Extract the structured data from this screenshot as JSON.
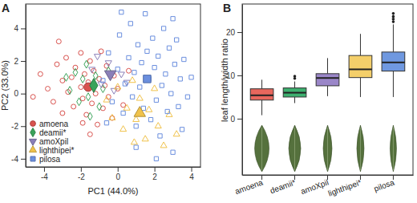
{
  "chart_data": [
    {
      "type": "scatter",
      "title": "A",
      "xlabel": "PC1 (44.0%)",
      "ylabel": "PC2 (33.0%)",
      "xlim": [
        -5,
        4.5
      ],
      "xticks": [
        -4,
        -2,
        0,
        2,
        4
      ],
      "ylim": [
        -4.5,
        5.5
      ],
      "yticks": [
        -4,
        -2,
        0,
        2,
        4
      ],
      "legend": "bottom-left",
      "series": [
        {
          "name": "amoena",
          "color": "#d9534f",
          "marker": "circle",
          "x": [
            -4.2,
            -3.8,
            -3.5,
            -3.3,
            -3.0,
            -3.0,
            -2.8,
            -2.7,
            -2.5,
            -2.4,
            -2.3,
            -1.9,
            -2.0,
            -2.0,
            -1.9,
            -1.8,
            -1.7,
            -1.6,
            -1.5,
            -1.4,
            -1.3,
            -1.2,
            -1.1,
            -1.0,
            -0.9,
            -0.8,
            -0.7,
            -0.6,
            -0.5,
            -0.3,
            -0.2,
            0.0,
            0.3,
            0.6,
            -4.6,
            -3.2,
            -1.5
          ],
          "y": [
            1.2,
            0.3,
            -0.5,
            1.8,
            0.8,
            -1.2,
            2.2,
            0.1,
            1.0,
            -0.8,
            1.6,
            -1.8,
            0.4,
            2.5,
            -0.3,
            1.2,
            -1.3,
            0.7,
            2.0,
            -0.6,
            1.4,
            0.0,
            -1.9,
            0.9,
            2.6,
            -0.9,
            0.5,
            1.7,
            -0.2,
            -1.5,
            1.1,
            0.3,
            -0.7,
            1.4,
            -0.2,
            3.2,
            -2.5
          ],
          "centroid_x": -1.6,
          "centroid_y": 0.4
        },
        {
          "name": "deamii*",
          "color": "#3aa35a",
          "marker": "diamond",
          "x": [
            -2.6,
            -2.3,
            -2.1,
            -1.9,
            -1.7,
            -1.6,
            -1.4,
            -1.2,
            -1.0,
            -0.8,
            -2.8,
            -0.5,
            -1.5
          ],
          "y": [
            0.2,
            1.3,
            -0.5,
            0.9,
            1.8,
            -0.2,
            0.5,
            1.1,
            -0.8,
            0.3,
            1.0,
            1.4,
            -1.4
          ],
          "centroid_x": -1.3,
          "centroid_y": 0.5
        },
        {
          "name": "amoXpil",
          "color": "#8a7fb8",
          "marker": "triangle-down",
          "x": [
            -1.4,
            -0.9,
            -0.5,
            -0.2,
            0.2,
            -1.1,
            0.5
          ],
          "y": [
            1.5,
            0.6,
            1.9,
            0.2,
            1.2,
            2.3,
            0.7
          ],
          "centroid_x": -0.4,
          "centroid_y": 1.2
        },
        {
          "name": "lighthipei*",
          "color": "#f0c24b",
          "marker": "triangle-up",
          "x": [
            -0.6,
            -0.3,
            0.0,
            0.3,
            0.5,
            0.8,
            1.0,
            1.2,
            1.5,
            1.7,
            2.0,
            2.2,
            2.5,
            2.8,
            3.2,
            0.9
          ],
          "y": [
            -0.4,
            -1.5,
            0.4,
            -2.2,
            -0.9,
            0.8,
            -1.6,
            -0.3,
            -2.8,
            -1.0,
            0.3,
            -2.0,
            -3.2,
            -1.3,
            -2.5,
            -3.0
          ],
          "centroid_x": 1.2,
          "centroid_y": -1.2
        },
        {
          "name": "pilosa",
          "color": "#6b8fde",
          "marker": "square",
          "x": [
            -0.8,
            -0.5,
            -0.3,
            0.0,
            0.1,
            0.3,
            0.4,
            0.6,
            0.7,
            0.8,
            0.9,
            1.0,
            1.1,
            1.2,
            1.3,
            1.4,
            1.5,
            1.6,
            1.7,
            1.8,
            1.9,
            2.0,
            2.1,
            2.2,
            2.3,
            2.4,
            2.5,
            2.6,
            2.7,
            2.8,
            2.9,
            3.0,
            3.1,
            3.2,
            3.3,
            3.4,
            3.5,
            3.6,
            3.8,
            4.0,
            0.2,
            1.0,
            2.1,
            -0.6,
            3.0
          ],
          "y": [
            0.8,
            2.5,
            -0.5,
            1.5,
            3.6,
            -1.2,
            0.6,
            2.2,
            4.3,
            -0.2,
            1.3,
            -2.0,
            3.0,
            0.4,
            1.9,
            -0.9,
            4.9,
            2.6,
            0.9,
            -1.6,
            3.4,
            1.6,
            -0.4,
            2.3,
            -2.6,
            0.5,
            4.0,
            1.2,
            -1.1,
            2.8,
            0.0,
            -3.6,
            1.8,
            3.3,
            -0.8,
            0.9,
            -2.2,
            2.1,
            -0.2,
            1.0,
            5.0,
            -3.3,
            -4.0,
            -1.8,
            4.6
          ],
          "centroid_x": 1.6,
          "centroid_y": 0.9
        }
      ]
    },
    {
      "type": "box",
      "title": "B",
      "ylabel": "leaf length/width ratio",
      "categories": [
        "amoena",
        "deamii*",
        "amoXpil",
        "lighthipei*",
        "pilosa"
      ],
      "colors": [
        "#e8675d",
        "#3db06f",
        "#9a86c8",
        "#f4cf6a",
        "#6f98e0"
      ],
      "whisker_low": [
        0.8,
        3.6,
        5.2,
        5.0,
        5.0
      ],
      "q1": [
        4.3,
        5.0,
        7.6,
        9.5,
        11.0
      ],
      "median": [
        5.4,
        6.0,
        9.4,
        11.4,
        13.0
      ],
      "q3": [
        6.9,
        7.1,
        10.4,
        14.6,
        15.4
      ],
      "whisker_high": [
        9.0,
        8.6,
        14.0,
        19.6,
        21.8
      ],
      "outliers": [
        [],
        [
          9.3,
          9.8
        ],
        [],
        [],
        [
          22.4,
          23.0,
          23.6,
          24.3
        ]
      ],
      "ylim": [
        -13,
        26.5
      ],
      "yticks": [
        0,
        10,
        20
      ]
    }
  ]
}
